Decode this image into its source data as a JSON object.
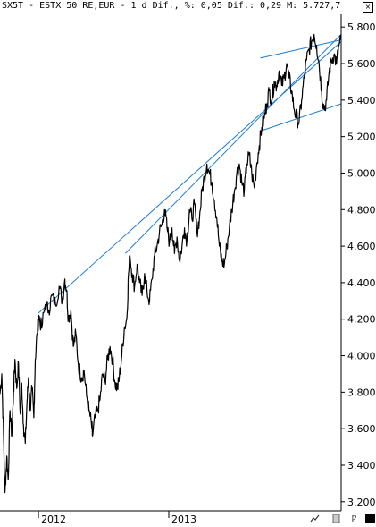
{
  "title": "SX5T - ESTX 50 RE,EUR - 1 d Dif., %: 0,05 Dif.: 0,29 M: 5.727,7",
  "window": {
    "close_symbol": "×"
  },
  "toolbar": {
    "icons": [
      "chart-icon",
      "page-icon",
      "key-icon",
      "square-icon"
    ],
    "key_symbol": "ƿ",
    "square_symbol": ""
  },
  "colors": {
    "price_line": "#000000",
    "trend_line": "#1e7bd0",
    "axis": "#000000"
  },
  "chart_data": {
    "type": "line",
    "title": "SX5T - ESTX 50 RE,EUR",
    "ylim": [
      3150,
      5850
    ],
    "yticks": [
      {
        "value": 3200,
        "label": "3.200"
      },
      {
        "value": 3400,
        "label": "3.400"
      },
      {
        "value": 3600,
        "label": "3.600"
      },
      {
        "value": 3800,
        "label": "3.800"
      },
      {
        "value": 4000,
        "label": "4.000"
      },
      {
        "value": 4200,
        "label": "4.200"
      },
      {
        "value": 4400,
        "label": "4.400"
      },
      {
        "value": 4600,
        "label": "4.600"
      },
      {
        "value": 4800,
        "label": "4.800"
      },
      {
        "value": 5000,
        "label": "5.000"
      },
      {
        "value": 5200,
        "label": "5.200"
      },
      {
        "value": 5400,
        "label": "5.400"
      },
      {
        "value": 5600,
        "label": "5.600"
      },
      {
        "value": 5800,
        "label": "5.800"
      }
    ],
    "xlim": [
      "2011-09-15",
      "2014-04-30"
    ],
    "xticks": [
      {
        "value": "2012-01-01",
        "label": "2012"
      },
      {
        "value": "2013-01-01",
        "label": "2013"
      }
    ],
    "series": [
      {
        "values": [
          [
            "2011-09-15",
            3790
          ],
          [
            "2011-09-20",
            3900
          ],
          [
            "2011-09-25",
            3560
          ],
          [
            "2011-09-29",
            3250
          ],
          [
            "2011-10-04",
            3450
          ],
          [
            "2011-10-08",
            3320
          ],
          [
            "2011-10-13",
            3700
          ],
          [
            "2011-10-18",
            3560
          ],
          [
            "2011-10-23",
            3800
          ],
          [
            "2011-10-27",
            3980
          ],
          [
            "2011-11-01",
            3820
          ],
          [
            "2011-11-06",
            3960
          ],
          [
            "2011-11-11",
            3680
          ],
          [
            "2011-11-15",
            3850
          ],
          [
            "2011-11-20",
            3620
          ],
          [
            "2011-11-25",
            3520
          ],
          [
            "2011-11-30",
            3750
          ],
          [
            "2011-12-04",
            3880
          ],
          [
            "2011-12-09",
            3700
          ],
          [
            "2011-12-14",
            3820
          ],
          [
            "2011-12-19",
            3660
          ],
          [
            "2011-12-23",
            3980
          ],
          [
            "2011-12-28",
            4120
          ],
          [
            "2012-01-02",
            4220
          ],
          [
            "2012-01-10",
            4150
          ],
          [
            "2012-01-20",
            4280
          ],
          [
            "2012-01-30",
            4250
          ],
          [
            "2012-02-08",
            4330
          ],
          [
            "2012-02-18",
            4280
          ],
          [
            "2012-02-28",
            4380
          ],
          [
            "2012-03-08",
            4300
          ],
          [
            "2012-03-15",
            4420
          ],
          [
            "2012-03-20",
            4360
          ],
          [
            "2012-03-25",
            4200
          ],
          [
            "2012-04-01",
            4250
          ],
          [
            "2012-04-08",
            4050
          ],
          [
            "2012-04-15",
            4120
          ],
          [
            "2012-04-22",
            3950
          ],
          [
            "2012-05-01",
            3880
          ],
          [
            "2012-05-08",
            3920
          ],
          [
            "2012-05-15",
            3780
          ],
          [
            "2012-05-22",
            3700
          ],
          [
            "2012-05-29",
            3620
          ],
          [
            "2012-06-01",
            3560
          ],
          [
            "2012-06-08",
            3660
          ],
          [
            "2012-06-15",
            3700
          ],
          [
            "2012-06-22",
            3760
          ],
          [
            "2012-06-29",
            3900
          ],
          [
            "2012-07-06",
            3860
          ],
          [
            "2012-07-13",
            3980
          ],
          [
            "2012-07-20",
            4050
          ],
          [
            "2012-07-27",
            3980
          ],
          [
            "2012-08-03",
            3850
          ],
          [
            "2012-08-10",
            3820
          ],
          [
            "2012-08-15",
            3880
          ],
          [
            "2012-08-22",
            4000
          ],
          [
            "2012-08-29",
            4150
          ],
          [
            "2012-09-05",
            4200
          ],
          [
            "2012-09-10",
            4450
          ],
          [
            "2012-09-14",
            4550
          ],
          [
            "2012-09-20",
            4450
          ],
          [
            "2012-09-27",
            4380
          ],
          [
            "2012-10-04",
            4500
          ],
          [
            "2012-10-11",
            4400
          ],
          [
            "2012-10-18",
            4330
          ],
          [
            "2012-10-25",
            4450
          ],
          [
            "2012-11-01",
            4350
          ],
          [
            "2012-11-08",
            4300
          ],
          [
            "2012-11-15",
            4420
          ],
          [
            "2012-11-22",
            4550
          ],
          [
            "2012-11-29",
            4600
          ],
          [
            "2012-12-06",
            4680
          ],
          [
            "2012-12-13",
            4720
          ],
          [
            "2012-12-20",
            4800
          ],
          [
            "2012-12-27",
            4700
          ],
          [
            "2013-01-03",
            4620
          ],
          [
            "2013-01-10",
            4700
          ],
          [
            "2013-01-17",
            4560
          ],
          [
            "2013-01-24",
            4650
          ],
          [
            "2013-01-31",
            4520
          ],
          [
            "2013-02-07",
            4600
          ],
          [
            "2013-02-14",
            4700
          ],
          [
            "2013-02-21",
            4630
          ],
          [
            "2013-02-28",
            4800
          ],
          [
            "2013-03-07",
            4750
          ],
          [
            "2013-03-14",
            4830
          ],
          [
            "2013-03-21",
            4680
          ],
          [
            "2013-03-28",
            4750
          ],
          [
            "2013-04-04",
            4900
          ],
          [
            "2013-04-11",
            4980
          ],
          [
            "2013-04-18",
            5050
          ],
          [
            "2013-04-25",
            5000
          ],
          [
            "2013-05-02",
            4950
          ],
          [
            "2013-05-09",
            4850
          ],
          [
            "2013-05-16",
            4750
          ],
          [
            "2013-05-23",
            4600
          ],
          [
            "2013-05-30",
            4520
          ],
          [
            "2013-06-06",
            4500
          ],
          [
            "2013-06-13",
            4600
          ],
          [
            "2013-06-20",
            4700
          ],
          [
            "2013-06-27",
            4800
          ],
          [
            "2013-07-04",
            4900
          ],
          [
            "2013-07-11",
            5000
          ],
          [
            "2013-07-18",
            5050
          ],
          [
            "2013-07-25",
            4950
          ],
          [
            "2013-08-01",
            4900
          ],
          [
            "2013-08-08",
            5050
          ],
          [
            "2013-08-15",
            5100
          ],
          [
            "2013-08-22",
            5000
          ],
          [
            "2013-08-29",
            4920
          ],
          [
            "2013-09-05",
            5050
          ],
          [
            "2013-09-12",
            5150
          ],
          [
            "2013-09-19",
            5250
          ],
          [
            "2013-09-26",
            5300
          ],
          [
            "2013-10-03",
            5380
          ],
          [
            "2013-10-10",
            5450
          ],
          [
            "2013-10-17",
            5400
          ],
          [
            "2013-10-24",
            5500
          ],
          [
            "2013-10-31",
            5480
          ],
          [
            "2013-11-07",
            5560
          ],
          [
            "2013-11-14",
            5480
          ],
          [
            "2013-11-21",
            5520
          ],
          [
            "2013-11-28",
            5600
          ],
          [
            "2013-12-05",
            5520
          ],
          [
            "2013-12-12",
            5450
          ],
          [
            "2013-12-19",
            5350
          ],
          [
            "2013-12-26",
            5300
          ],
          [
            "2014-01-02",
            5280
          ],
          [
            "2014-01-09",
            5400
          ],
          [
            "2014-01-16",
            5520
          ],
          [
            "2014-01-23",
            5620
          ],
          [
            "2014-01-30",
            5680
          ],
          [
            "2014-02-06",
            5720
          ],
          [
            "2014-02-13",
            5760
          ],
          [
            "2014-02-20",
            5700
          ],
          [
            "2014-02-27",
            5600
          ],
          [
            "2014-03-06",
            5450
          ],
          [
            "2014-03-13",
            5350
          ],
          [
            "2014-03-20",
            5400
          ],
          [
            "2014-03-27",
            5550
          ],
          [
            "2014-04-03",
            5620
          ],
          [
            "2014-04-10",
            5650
          ],
          [
            "2014-04-17",
            5600
          ],
          [
            "2014-04-24",
            5700
          ],
          [
            "2014-04-30",
            5728
          ]
        ]
      }
    ],
    "trend_lines": [
      {
        "from": [
          "2011-12-30",
          4230
        ],
        "to": [
          "2014-04-30",
          5720
        ]
      },
      {
        "from": [
          "2012-09-01",
          4560
        ],
        "to": [
          "2014-04-30",
          5760
        ]
      },
      {
        "from": [
          "2013-09-15",
          5630
        ],
        "to": [
          "2014-04-30",
          5730
        ]
      },
      {
        "from": [
          "2013-09-15",
          5230
        ],
        "to": [
          "2014-04-30",
          5380
        ]
      }
    ]
  }
}
